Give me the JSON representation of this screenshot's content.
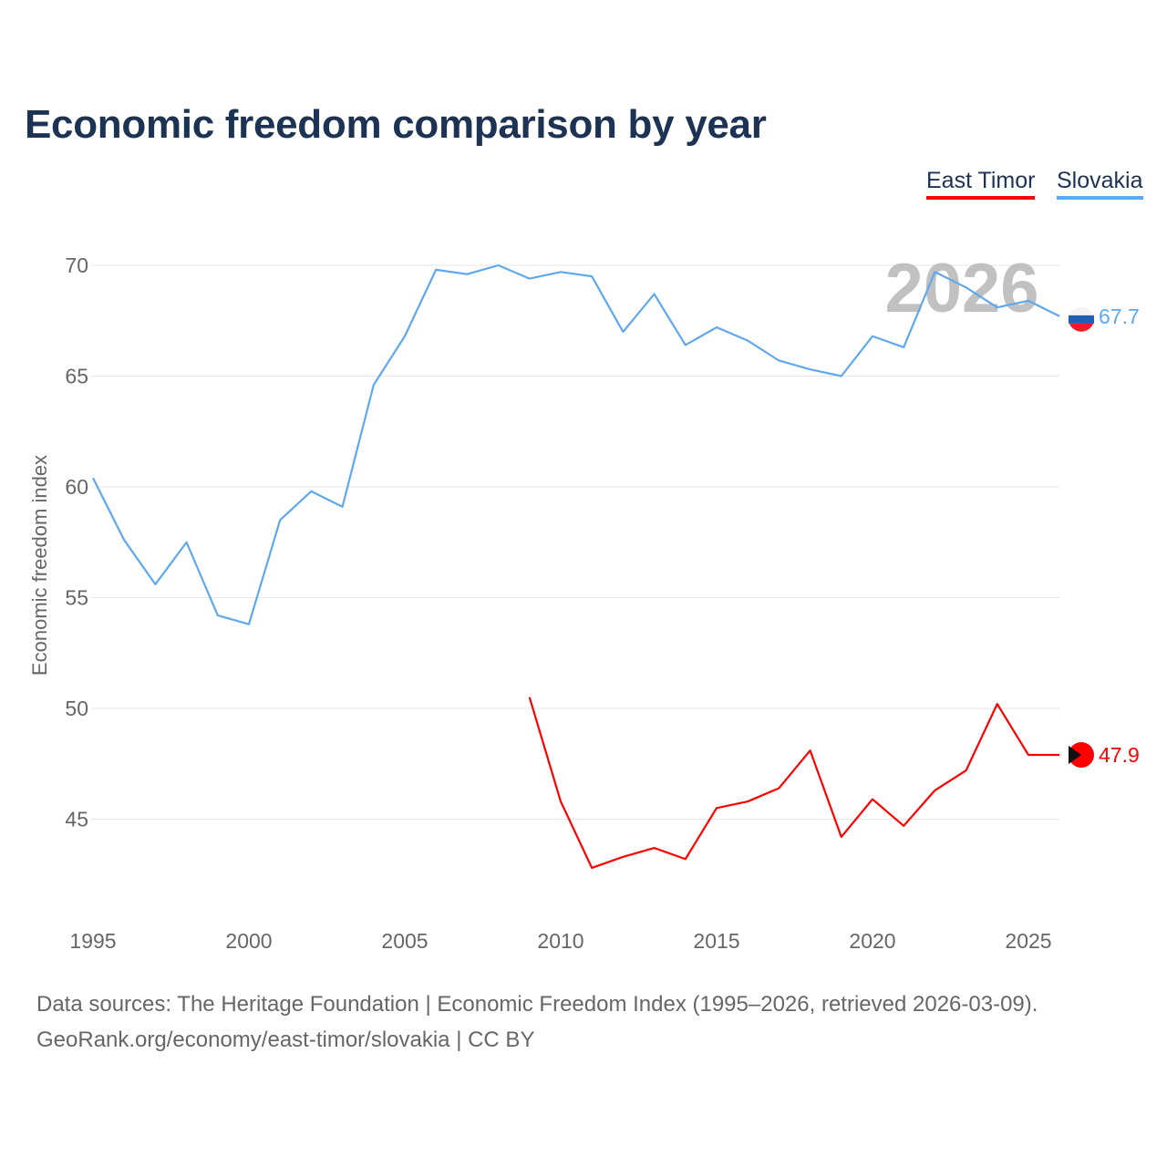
{
  "chart_data": {
    "type": "line",
    "title": "Economic freedom comparison by year",
    "xlabel": "",
    "ylabel": "Economic freedom index",
    "xlim": [
      1995,
      2026
    ],
    "ylim": [
      41,
      71
    ],
    "grid": true,
    "x_ticks": [
      "1995",
      "2000",
      "2005",
      "2010",
      "2015",
      "2020",
      "2025"
    ],
    "y_ticks": [
      "45",
      "50",
      "55",
      "60",
      "65",
      "70"
    ],
    "watermark_year": "2026",
    "legend_position": "top-right",
    "series": [
      {
        "name": "East Timor",
        "color": "#ff0000",
        "end_label": "47.9",
        "x": [
          2009,
          2010,
          2011,
          2012,
          2013,
          2014,
          2015,
          2016,
          2017,
          2018,
          2019,
          2020,
          2021,
          2022,
          2023,
          2024,
          2025,
          2026
        ],
        "values": [
          50.5,
          45.8,
          42.8,
          43.3,
          43.7,
          43.2,
          45.5,
          45.8,
          46.4,
          48.1,
          44.2,
          45.9,
          44.7,
          46.3,
          47.2,
          50.2,
          47.9,
          47.9
        ]
      },
      {
        "name": "Slovakia",
        "color": "#5fa8ed",
        "end_label": "67.7",
        "x": [
          1995,
          1996,
          1997,
          1998,
          1999,
          2000,
          2001,
          2002,
          2003,
          2004,
          2005,
          2006,
          2007,
          2008,
          2009,
          2010,
          2011,
          2012,
          2013,
          2014,
          2015,
          2016,
          2017,
          2018,
          2019,
          2020,
          2021,
          2022,
          2023,
          2024,
          2025,
          2026
        ],
        "values": [
          60.4,
          57.6,
          55.6,
          57.5,
          54.2,
          53.8,
          58.5,
          59.8,
          59.1,
          64.6,
          66.8,
          69.8,
          69.6,
          70.0,
          69.4,
          69.7,
          69.5,
          67.0,
          68.7,
          66.4,
          67.2,
          66.6,
          65.7,
          65.3,
          65.0,
          66.8,
          66.3,
          69.7,
          69.0,
          68.1,
          68.4,
          67.7
        ]
      }
    ]
  },
  "footer": {
    "line1": "Data sources: The Heritage Foundation | Economic Freedom Index (1995–2026, retrieved 2026-03-09).",
    "line2": "GeoRank.org/economy/east-timor/slovakia | CC BY"
  }
}
